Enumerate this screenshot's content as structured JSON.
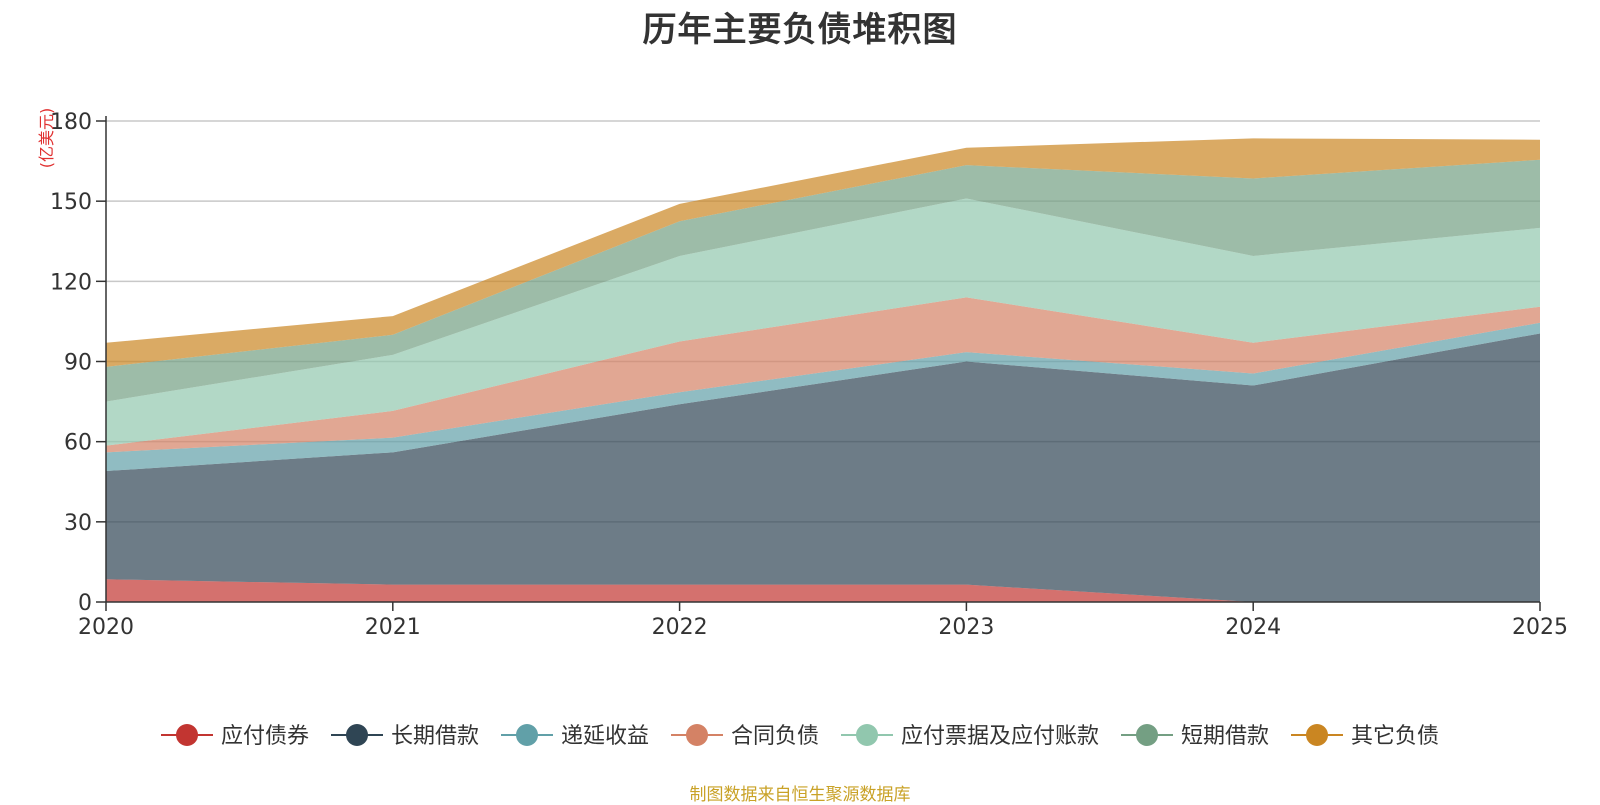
{
  "chart_data": {
    "type": "area",
    "stacked": true,
    "title": "历年主要负债堆积图",
    "unit_label": "(亿美元)",
    "source_note": "制图数据来自恒生聚源数据库",
    "x": [
      "2020",
      "2021",
      "2022",
      "2023",
      "2024",
      "2025"
    ],
    "yticks": [
      "0",
      "30",
      "60",
      "90",
      "120",
      "150",
      "180"
    ],
    "ylim": [
      0,
      180
    ],
    "legend_position": "bottom",
    "series": [
      {
        "name": "应付债券",
        "color": "#c23531",
        "values": [
          8.5,
          6.5,
          6.5,
          6.5,
          0,
          0
        ]
      },
      {
        "name": "长期借款",
        "color": "#2f4554",
        "values": [
          40.5,
          49.5,
          67.5,
          83.5,
          81,
          100.5
        ]
      },
      {
        "name": "递延收益",
        "color": "#61a0a8",
        "values": [
          7,
          5.5,
          4.5,
          3.5,
          4.5,
          4
        ]
      },
      {
        "name": "合同负债",
        "color": "#d48265",
        "values": [
          2.5,
          10,
          19,
          20.5,
          11.5,
          6
        ]
      },
      {
        "name": "应付票据及应付账款",
        "color": "#91c7ae",
        "values": [
          16.5,
          21,
          32,
          37,
          32.5,
          29.5
        ]
      },
      {
        "name": "短期借款",
        "color": "#749f83",
        "values": [
          13,
          7.5,
          13,
          12.5,
          29,
          25.5
        ]
      },
      {
        "name": "其它负债",
        "color": "#ca8622",
        "values": [
          9,
          7,
          6.5,
          6.5,
          15,
          7.5
        ]
      }
    ]
  }
}
